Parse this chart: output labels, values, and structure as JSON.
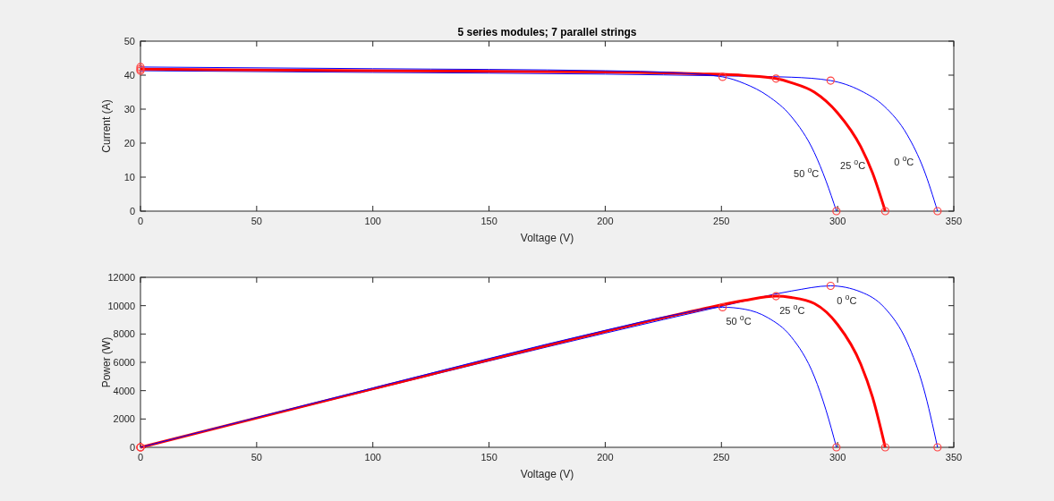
{
  "chart_data": [
    {
      "type": "line",
      "title": "5 series modules; 7 parallel strings",
      "xlabel": "Voltage (V)",
      "ylabel": "Current (A)",
      "xlim": [
        0,
        350
      ],
      "xticks": [
        0,
        50,
        100,
        150,
        200,
        250,
        300,
        350
      ],
      "ylim": [
        0,
        50
      ],
      "yticks": [
        0,
        10,
        20,
        30,
        40,
        50
      ],
      "grid": false,
      "series": [
        {
          "color": "#0000ff",
          "x": [
            0,
            100,
            200,
            250,
            280,
            297,
            310,
            320,
            330,
            337,
            343
          ],
          "values": [
            41.3,
            40.8,
            40.3,
            39.8,
            39.4,
            38.4,
            35.4,
            30.9,
            22.4,
            12.4,
            0
          ]
        },
        {
          "color": "#ff0000",
          "x": [
            0,
            100,
            200,
            240,
            260,
            273.5,
            280,
            290,
            300,
            310,
            315,
            320.5
          ],
          "values": [
            41.8,
            41.3,
            40.9,
            40.4,
            39.9,
            39.0,
            37.8,
            35.0,
            28.9,
            18.9,
            11.3,
            0
          ]
        },
        {
          "color": "#0000ff",
          "x": [
            0,
            100,
            200,
            230,
            250.5,
            260,
            270,
            280,
            290,
            295,
            299.5
          ],
          "values": [
            42.4,
            41.9,
            41.3,
            40.7,
            39.5,
            37.5,
            33.9,
            27.9,
            17.2,
            8.9,
            0
          ]
        },
        {
          "type": "scatter",
          "marker": "circle",
          "color": "#ff4040",
          "x": [
            0,
            297,
            343,
            0,
            273.5,
            320.5,
            0,
            250.5,
            299.5
          ],
          "values": [
            41.3,
            38.4,
            0,
            41.8,
            39.0,
            0,
            42.4,
            39.5,
            0
          ]
        }
      ],
      "annotations": [
        "0 $^{o}$C",
        "25 $^{o}$C",
        "50 $^{o}$C"
      ]
    },
    {
      "type": "line",
      "xlabel": "Voltage (V)",
      "ylabel": "Power (W)",
      "xlim": [
        0,
        350
      ],
      "xticks": [
        0,
        50,
        100,
        150,
        200,
        250,
        300,
        350
      ],
      "ylim": [
        0,
        12000
      ],
      "yticks": [
        0,
        2000,
        4000,
        6000,
        8000,
        10000,
        12000
      ],
      "grid": false,
      "series": [
        {
          "color": "#0000ff",
          "x": [
            0,
            100,
            200,
            250,
            280,
            297,
            310,
            320,
            330,
            337,
            343
          ],
          "values": [
            0,
            4080,
            8060,
            9950,
            11030,
            11400,
            10970,
            9890,
            7390,
            4180,
            0
          ]
        },
        {
          "color": "#ff0000",
          "x": [
            0,
            100,
            200,
            240,
            260,
            273.5,
            280,
            290,
            300,
            310,
            315,
            320.5
          ],
          "values": [
            0,
            4130,
            8180,
            9700,
            10370,
            10670,
            10580,
            10150,
            8670,
            5860,
            3560,
            0
          ]
        },
        {
          "color": "#0000ff",
          "x": [
            0,
            100,
            200,
            230,
            250.5,
            260,
            270,
            280,
            290,
            295,
            299.5
          ],
          "values": [
            0,
            4190,
            8260,
            9360,
            9890,
            9750,
            9150,
            7810,
            4990,
            2630,
            0
          ]
        },
        {
          "type": "scatter",
          "marker": "circle",
          "color": "#ff4040",
          "x": [
            0,
            297,
            343,
            0,
            273.5,
            320.5,
            0,
            250.5,
            299.5
          ],
          "values": [
            0,
            11400,
            0,
            0,
            10670,
            0,
            0,
            9890,
            0
          ]
        }
      ],
      "annotations": [
        "0 $^{o}$C",
        "25 $^{o}$C",
        "50 $^{o}$C"
      ]
    }
  ]
}
